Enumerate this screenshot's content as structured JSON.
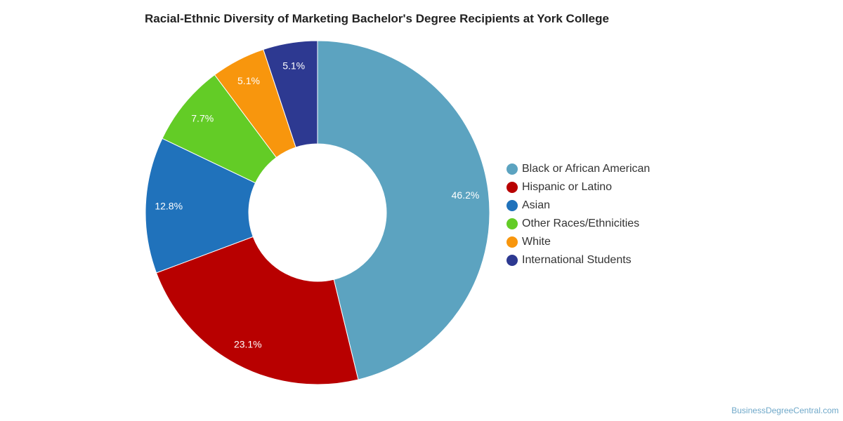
{
  "chart_data": {
    "type": "pie",
    "title": "Racial-Ethnic Diversity of Marketing Bachelor's Degree Recipients at York College",
    "legend_position": "right",
    "donut": true,
    "categories": [
      "Black or African American",
      "Hispanic or Latino",
      "Asian",
      "Other Races/Ethnicities",
      "White",
      "International Students"
    ],
    "values": [
      46.2,
      23.1,
      12.8,
      7.7,
      5.1,
      5.1
    ],
    "labels": [
      "46.2%",
      "23.1%",
      "12.8%",
      "7.7%",
      "5.1%",
      "5.1%"
    ],
    "colors": [
      "#5ca3c0",
      "#b80000",
      "#2072bb",
      "#63cc26",
      "#f8960d",
      "#2d3991"
    ]
  },
  "credit": "BusinessDegreeCentral.com"
}
